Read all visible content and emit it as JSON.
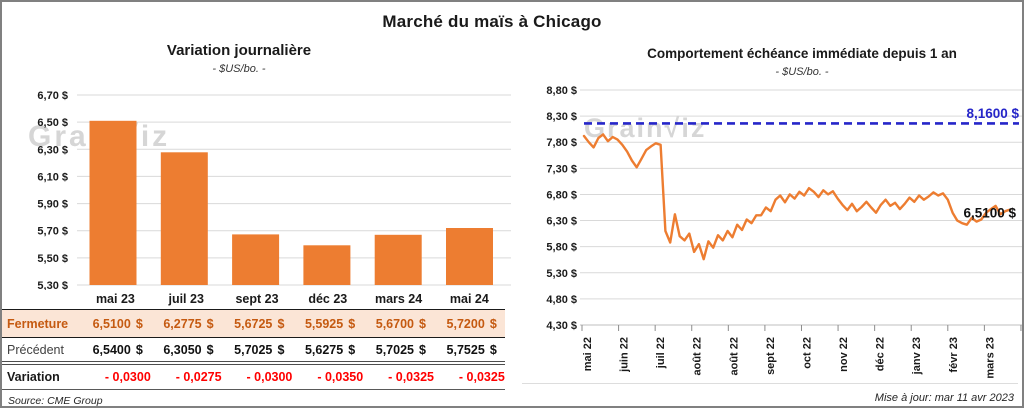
{
  "title": "Marché du maïs à Chicago",
  "watermark": "Grain√iz",
  "colors": {
    "bar_orange": "#ED7D31",
    "line_orange": "#ED7D31",
    "ref_blue": "#2626C9",
    "variation_red": "#FF0000",
    "fermeture_bg": "#FBE5D6",
    "fermeture_text": "#C55A11",
    "gridline": "#D9D9D9",
    "watermark_gray": "#D6D6D6"
  },
  "chart_data": [
    {
      "type": "bar",
      "title": "Variation journalière",
      "subtitle": "- $US/bo. -",
      "categories": [
        "mai 23",
        "juil 23",
        "sept 23",
        "déc 23",
        "mars 24",
        "mai 24"
      ],
      "values": [
        6.51,
        6.2775,
        5.6725,
        5.5925,
        5.67,
        5.72
      ],
      "ylim": [
        5.3,
        6.7
      ],
      "ytick_step": 0.2,
      "ytick_labels": [
        "5,30 $",
        "5,50 $",
        "5,70 $",
        "5,90 $",
        "6,10 $",
        "6,30 $",
        "6,50 $",
        "6,70 $"
      ],
      "grid": true,
      "legend": "none",
      "xlabel": "",
      "ylabel": ""
    },
    {
      "type": "line",
      "title": "Comportement échéance immédiate depuis 1 an",
      "subtitle": "- $US/bo. -",
      "x_labels": [
        "mai 22",
        "juin 22",
        "juil 22",
        "août 22",
        "août 22",
        "sept 22",
        "oct 22",
        "nov 22",
        "déc 22",
        "janv 23",
        "févr 23",
        "mars 23"
      ],
      "ylim": [
        4.3,
        8.8
      ],
      "ytick_step": 0.5,
      "ytick_labels": [
        "4,30 $",
        "4,80 $",
        "5,30 $",
        "5,80 $",
        "6,30 $",
        "6,80 $",
        "7,30 $",
        "7,80 $",
        "8,30 $",
        "8,80 $"
      ],
      "grid": true,
      "legend": "none",
      "ref_line": {
        "value": 8.16,
        "label": "8,1600 $",
        "style": "dashed"
      },
      "end_label": {
        "value": 6.51,
        "label": "6,5100 $"
      },
      "values": [
        7.92,
        7.8,
        7.7,
        7.88,
        7.95,
        7.82,
        7.9,
        7.85,
        7.75,
        7.62,
        7.45,
        7.32,
        7.48,
        7.65,
        7.72,
        7.78,
        7.75,
        6.1,
        5.88,
        6.42,
        6.0,
        5.92,
        6.05,
        5.7,
        5.85,
        5.56,
        5.9,
        5.78,
        6.02,
        5.92,
        6.1,
        5.98,
        6.22,
        6.12,
        6.32,
        6.25,
        6.4,
        6.4,
        6.55,
        6.48,
        6.7,
        6.78,
        6.65,
        6.8,
        6.72,
        6.85,
        6.78,
        6.92,
        6.85,
        6.75,
        6.88,
        6.8,
        6.86,
        6.72,
        6.6,
        6.5,
        6.62,
        6.48,
        6.56,
        6.66,
        6.55,
        6.45,
        6.6,
        6.7,
        6.58,
        6.64,
        6.52,
        6.62,
        6.74,
        6.66,
        6.78,
        6.7,
        6.76,
        6.84,
        6.78,
        6.82,
        6.7,
        6.45,
        6.3,
        6.25,
        6.22,
        6.35,
        6.28,
        6.32,
        6.45,
        6.52,
        6.58,
        6.42,
        6.48,
        6.51
      ]
    }
  ],
  "table": {
    "columns": [
      "mai 23",
      "juil 23",
      "sept 23",
      "déc 23",
      "mars 24",
      "mai 24"
    ],
    "rows": [
      {
        "id": "fermeture",
        "label": "Fermeture",
        "currency": "$",
        "values": [
          "6,5100",
          "6,2775",
          "5,6725",
          "5,5925",
          "5,6700",
          "5,7200"
        ]
      },
      {
        "id": "precedent",
        "label": "Précédent",
        "currency": "$",
        "values": [
          "6,5400",
          "6,3050",
          "5,7025",
          "5,6275",
          "5,7025",
          "5,7525"
        ]
      },
      {
        "id": "variation",
        "label": "Variation",
        "currency": "",
        "values": [
          "- 0,0300",
          "- 0,0275",
          "- 0,0300",
          "- 0,0350",
          "- 0,0325",
          "- 0,0325"
        ]
      }
    ],
    "source": "Source: CME Group"
  },
  "footer": {
    "updated": "Mise à jour: mar 11 avr 2023"
  }
}
